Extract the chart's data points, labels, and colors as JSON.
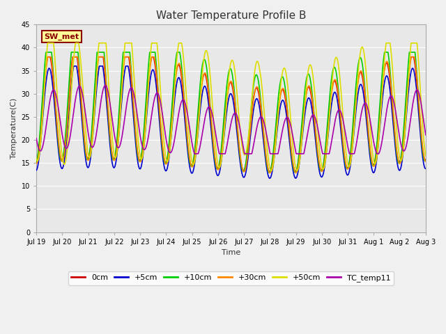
{
  "title": "Water Temperature Profile B",
  "xlabel": "Time",
  "ylabel": "Temperature(C)",
  "ylim": [
    0,
    45
  ],
  "yticks": [
    0,
    5,
    10,
    15,
    20,
    25,
    30,
    35,
    40,
    45
  ],
  "background_color": "#f0f0f0",
  "plot_bg_color": "#e8e8e8",
  "series_order": [
    "0cm",
    "+5cm",
    "+10cm",
    "+30cm",
    "+50cm",
    "TC_temp11"
  ],
  "series": {
    "0cm": {
      "color": "#cc0000",
      "lw": 1.2
    },
    "+5cm": {
      "color": "#0000cc",
      "lw": 1.2
    },
    "+10cm": {
      "color": "#00cc00",
      "lw": 1.2
    },
    "+30cm": {
      "color": "#ff8800",
      "lw": 1.2
    },
    "+50cm": {
      "color": "#dddd00",
      "lw": 1.2
    },
    "TC_temp11": {
      "color": "#aa00aa",
      "lw": 1.2
    }
  },
  "annotation_text": "SW_met",
  "annotation_bg": "#ffff99",
  "annotation_border": "#8B0000",
  "xtick_labels": [
    "Jul 19",
    "Jul 20",
    "Jul 21",
    "Jul 22",
    "Jul 23",
    "Jul 24",
    "Jul 25",
    "Jul 26",
    "Jul 27",
    "Jul 28",
    "Jul 29",
    "Jul 30",
    "Jul 31",
    "Aug 1",
    "Aug 2",
    "Aug 3"
  ],
  "grid_color": "#ffffff",
  "title_fontsize": 11,
  "axis_fontsize": 8,
  "tick_fontsize": 7
}
